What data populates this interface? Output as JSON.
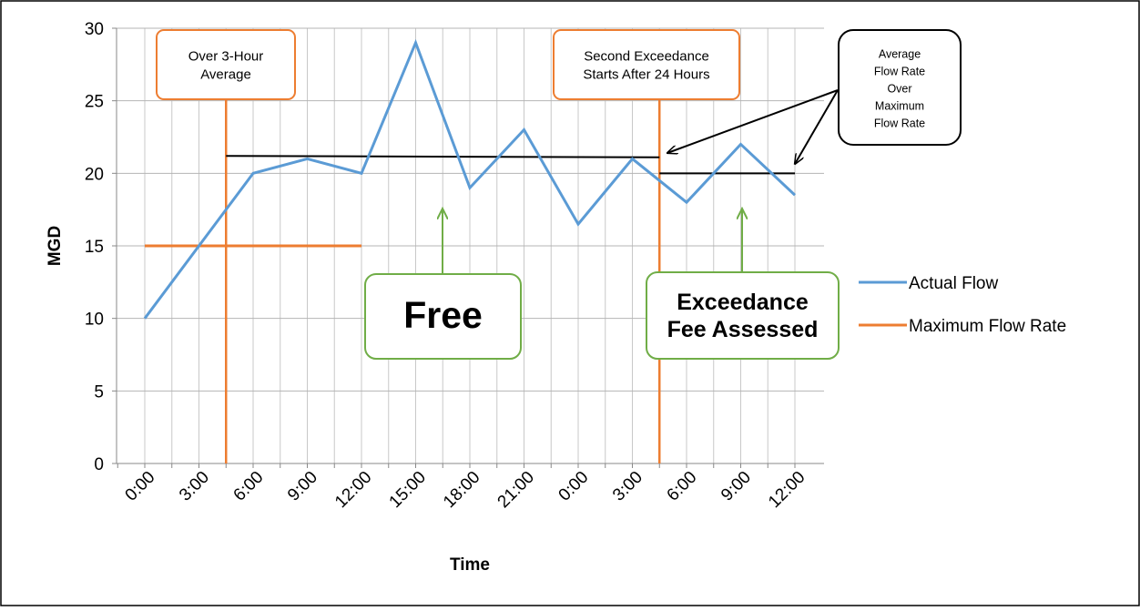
{
  "chart_data": {
    "type": "line",
    "title": "",
    "xlabel": "Time",
    "ylabel": "MGD",
    "ylim": [
      0,
      30
    ],
    "yticks": [
      0,
      5,
      10,
      15,
      20,
      25,
      30
    ],
    "categories": [
      "0:00",
      "3:00",
      "6:00",
      "9:00",
      "12:00",
      "15:00",
      "18:00",
      "21:00",
      "0:00",
      "3:00",
      "6:00",
      "9:00",
      "12:00"
    ],
    "grid": true,
    "legend_position": "right",
    "series": [
      {
        "name": "Actual Flow",
        "color": "#5b9bd5",
        "x": [
          "0:00",
          "6:00",
          "9:00",
          "12:00",
          "15:00",
          "18:00",
          "21:00",
          "0:00",
          "3:00",
          "6:00",
          "9:00",
          "12:00"
        ],
        "values": [
          10,
          20,
          21,
          20,
          29,
          19,
          23,
          16.5,
          21,
          18,
          22,
          18.5
        ]
      },
      {
        "name": "Maximum Flow Rate",
        "color": "#ed7d31",
        "x": [
          "0:00",
          "12:00"
        ],
        "values": [
          15,
          15
        ]
      }
    ],
    "annotations": {
      "boxes": [
        {
          "id": "over-3-hour",
          "lines": [
            "Over 3-Hour",
            "Average"
          ],
          "color": "#ed7d31"
        },
        {
          "id": "second-exceedance",
          "lines": [
            "Second Exceedance",
            "Starts After 24 Hours"
          ],
          "color": "#ed7d31"
        },
        {
          "id": "avg-over-max",
          "lines": [
            "Average",
            "Flow Rate",
            "Over",
            "Maximum",
            "Flow Rate"
          ],
          "color": "#000000"
        },
        {
          "id": "free",
          "lines": [
            "Free"
          ],
          "color": "#70ad47"
        },
        {
          "id": "fee",
          "lines": [
            "Exceedance",
            "Fee Assessed"
          ],
          "color": "#70ad47"
        }
      ],
      "average_lines": [
        {
          "from": "6:00",
          "to": "6:00",
          "from_day": 1,
          "to_day": 2,
          "y_start": 21.2,
          "y_end": 21.1
        },
        {
          "from": "6:00",
          "to": "12:00",
          "from_day": 2,
          "to_day": 2,
          "y_start": 20,
          "y_end": 20
        }
      ]
    }
  }
}
